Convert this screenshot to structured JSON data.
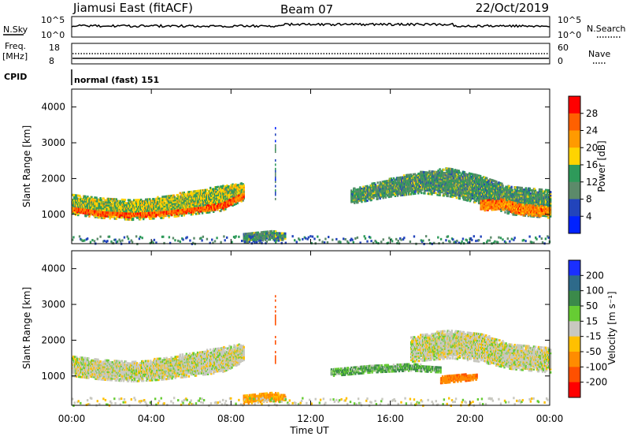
{
  "header": {
    "station": "Jiamusi East (fitACF)",
    "beam": "Beam 07",
    "date": "22/Oct/2019"
  },
  "top_panels": {
    "nsky_label": "N.Sky",
    "nsky_ticks": [
      "10^5",
      "10^0"
    ],
    "nsearch_label": "N.Search",
    "nsearch_ticks": [
      "10^5",
      "10^0"
    ],
    "freq_label": "Freq.",
    "freq_unit": "[MHz]",
    "freq_ticks": [
      "18",
      "8"
    ],
    "nave_label": "Nave",
    "nave_ticks": [
      "60",
      "0"
    ],
    "cpid_label": "CPID",
    "cpid_value": "normal (fast) 151"
  },
  "power_scale": {
    "label": "Power [dB]",
    "ticks": [
      "28",
      "24",
      "20",
      "16",
      "12",
      "8",
      "4"
    ],
    "colors": [
      "#ff0000",
      "#ff6000",
      "#ff9a00",
      "#ffd400",
      "#2e9a5a",
      "#5c8a6a",
      "#2244bb",
      "#0022ff"
    ]
  },
  "velocity_scale": {
    "label": "Velocity [m s⁻¹]",
    "ticks": [
      "200",
      "100",
      "50",
      "15",
      "-15",
      "-50",
      "-100",
      "-200"
    ],
    "colors": [
      "#1a2fff",
      "#2e6a8a",
      "#3b8a4a",
      "#66cc33",
      "#c8c8c0",
      "#ffc000",
      "#ff8c00",
      "#ff5000",
      "#ff0000"
    ]
  },
  "range_axis": {
    "label": "Slant Range [km]",
    "ticks": [
      "4000",
      "3000",
      "2000",
      "1000"
    ]
  },
  "time_axis": {
    "label": "Time UT",
    "ticks": [
      "00:00",
      "04:00",
      "08:00",
      "12:00",
      "16:00",
      "20:00",
      "00:00"
    ]
  },
  "chart_data": [
    {
      "type": "heatmap",
      "title": "Power",
      "xlabel": "Time UT",
      "ylabel": "Slant Range [km]",
      "xlim": [
        0,
        24
      ],
      "ylim": [
        180,
        4500
      ],
      "colorbar": "Power [dB]",
      "bands": [
        {
          "t": [
            0,
            1.5,
            3,
            4.5,
            6,
            7.5,
            8.6
          ],
          "r_low": [
            1000,
            900,
            850,
            900,
            1000,
            1100,
            1400
          ],
          "r_high": [
            1550,
            1450,
            1400,
            1500,
            1650,
            1800,
            1900
          ],
          "level_db": 14
        },
        {
          "t": [
            0,
            1.5,
            3,
            4.5,
            6,
            7.5,
            8.6
          ],
          "r_low": [
            1080,
            960,
            920,
            960,
            1060,
            1150,
            1450
          ],
          "r_high": [
            1200,
            1080,
            1040,
            1080,
            1180,
            1300,
            1600
          ],
          "level_db": 24
        },
        {
          "t": [
            8.6,
            9.3,
            10.0,
            10.7
          ],
          "r_low": [
            220,
            260,
            300,
            280
          ],
          "r_high": [
            480,
            520,
            560,
            480
          ],
          "level_db": 10
        },
        {
          "t": [
            14,
            16,
            17.5,
            19,
            20.5,
            22,
            24
          ],
          "r_low": [
            1300,
            1500,
            1600,
            1500,
            1300,
            1000,
            900
          ],
          "r_high": [
            1700,
            2000,
            2200,
            2300,
            2100,
            1800,
            1700
          ],
          "level_db": 10
        },
        {
          "t": [
            20.5,
            21.5,
            22.5,
            23.5,
            24
          ],
          "r_low": [
            1100,
            1150,
            1000,
            950,
            1000
          ],
          "r_high": [
            1400,
            1450,
            1300,
            1250,
            1200
          ],
          "level_db": 22
        }
      ]
    },
    {
      "type": "heatmap",
      "title": "Velocity",
      "xlabel": "Time UT",
      "ylabel": "Slant Range [km]",
      "xlim": [
        0,
        24
      ],
      "ylim": [
        180,
        4500
      ],
      "colorbar": "Velocity [m s⁻¹]",
      "bands": [
        {
          "t": [
            0,
            1.5,
            3,
            4.5,
            6,
            7.5,
            8.6
          ],
          "r_low": [
            1000,
            900,
            850,
            900,
            1000,
            1100,
            1400
          ],
          "r_high": [
            1550,
            1450,
            1400,
            1500,
            1650,
            1800,
            1900
          ],
          "velocity": 0
        },
        {
          "t": [
            8.6,
            9.3,
            10.0,
            10.7
          ],
          "r_low": [
            220,
            260,
            300,
            280
          ],
          "r_high": [
            480,
            520,
            560,
            480
          ],
          "velocity": -40
        },
        {
          "t": [
            13,
            15,
            17,
            18.5
          ],
          "r_low": [
            1000,
            1100,
            1150,
            1100
          ],
          "r_high": [
            1200,
            1300,
            1350,
            1250
          ],
          "velocity": 30
        },
        {
          "t": [
            17,
            19,
            20.5,
            22,
            24
          ],
          "r_low": [
            1400,
            1500,
            1400,
            1200,
            1100
          ],
          "r_high": [
            2100,
            2300,
            2200,
            1900,
            1800
          ],
          "velocity": 0
        },
        {
          "t": [
            18.5,
            19.5,
            20.3
          ],
          "r_low": [
            800,
            850,
            900
          ],
          "r_high": [
            1000,
            1050,
            1050
          ],
          "velocity": -60
        }
      ]
    }
  ]
}
